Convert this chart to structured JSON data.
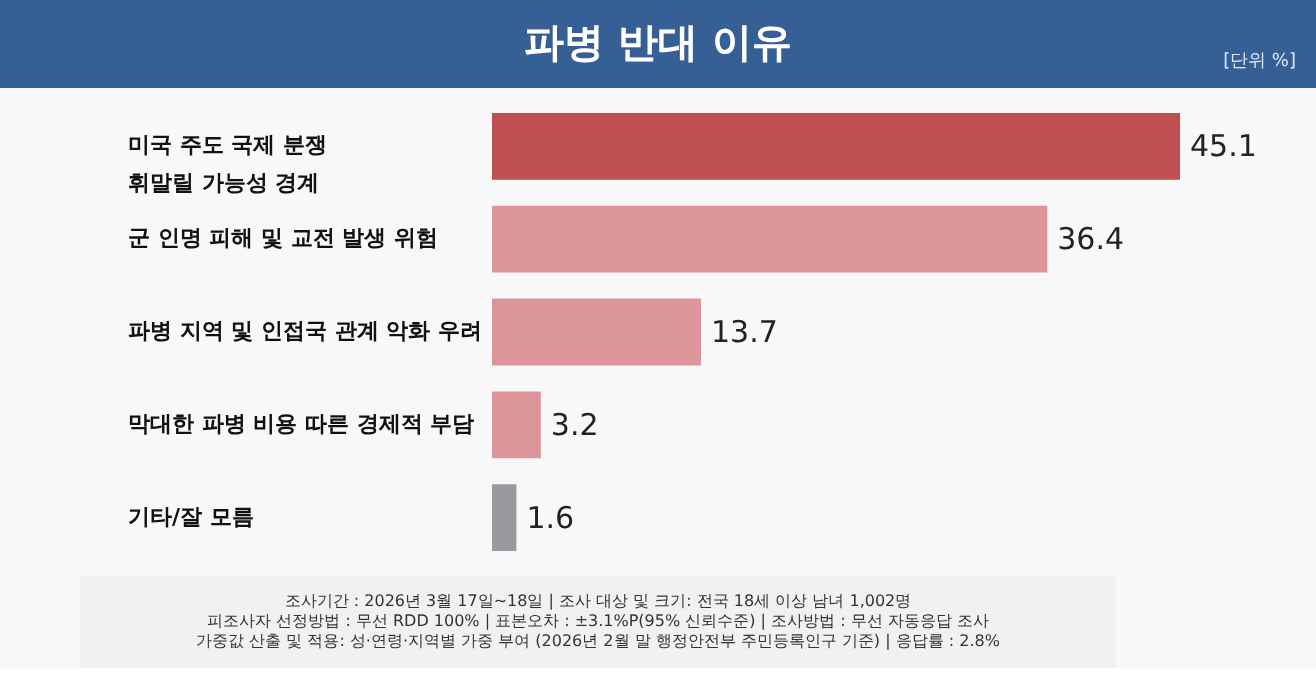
{
  "chart_data": {
    "type": "bar",
    "orientation": "horizontal",
    "title": "파병 반대 이유",
    "subtitle": "[단위 %]",
    "categories": [
      "미국 주도 국제 분쟁\n휘말릴 가능성 경계",
      "군 인명 피해 및 교전 발생 위험",
      "파병 지역 및 인접국 관계 악화 우려",
      "막대한 파병 비용 따른 경제적 부담",
      "기타/잘 모름"
    ],
    "values": [
      45.1,
      36.4,
      13.7,
      3.2,
      1.6
    ],
    "colors": [
      "#c0504f",
      "#dc9598",
      "#dc9598",
      "#dc9598",
      "#9a9a9e"
    ],
    "data_labels": true,
    "tick_labels": false,
    "grid": false,
    "annotations": [
      "조사기간 : 2026년 3월 17일~18일 | 조사 대상 및 크기: 전국 18세 이상 남녀 1,002명",
      "피조사자 선정방법 : 무선 RDD 100% | 표본오차 : ±3.1%P(95% 신뢰수준) | 조사방법 : 무선 자동응답 조사",
      "가중값 산출 및 적용: 성·연령·지역별 가중 부여 (2026년 2월 말 행정안전부 주민등록인구 기준) | 응답률 : 2.8%"
    ]
  }
}
